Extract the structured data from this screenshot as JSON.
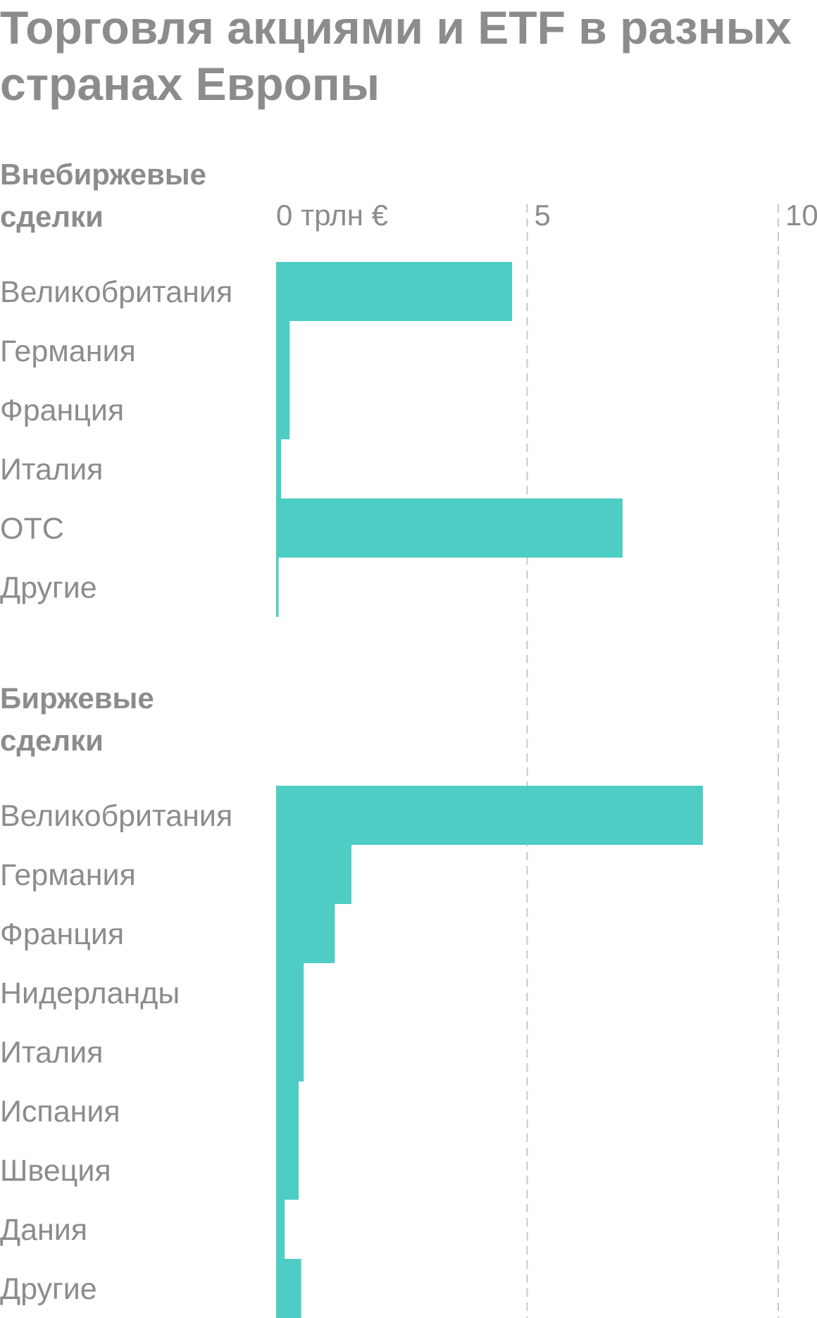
{
  "chart_data": {
    "type": "bar",
    "orientation": "horizontal",
    "title": "Торговля акциями и ETF в разных странах Европы",
    "xlim": [
      0,
      10.5
    ],
    "ticks": [
      0,
      5,
      10
    ],
    "tick_labels": [
      "0 трлн €",
      "5",
      "10"
    ],
    "grid": "vertical dashed",
    "bar_color": "#4ecdc4",
    "text_color": "#8c8c8c",
    "grid_color": "#c8c8c8",
    "groups": [
      {
        "name": "Внебиржевые сделки",
        "name_lines": [
          "Внебиржевые",
          "сделки"
        ],
        "categories": [
          "Великобритания",
          "Германия",
          "Франция",
          "Италия",
          "ОТС",
          "Другие"
        ],
        "values": [
          4.7,
          0.27,
          0.27,
          0.1,
          6.9,
          0.05
        ]
      },
      {
        "name": "Биржевые сделки",
        "name_lines": [
          "Биржевые",
          "сделки"
        ],
        "categories": [
          "Великобритания",
          "Германия",
          "Франция",
          "Нидерланды",
          "Италия",
          "Испания",
          "Швеция",
          "Дания",
          "Другие"
        ],
        "values": [
          8.5,
          1.5,
          1.17,
          0.55,
          0.55,
          0.45,
          0.45,
          0.17,
          0.5
        ]
      }
    ]
  }
}
